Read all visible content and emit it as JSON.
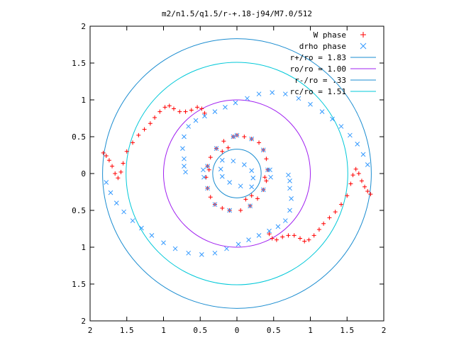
{
  "chart_data": {
    "type": "scatter",
    "title": "m2/n1.5/q1.5/r-+.18-j94/M7.0/512",
    "xlabel": "",
    "ylabel": "",
    "xlim": [
      -2,
      2
    ],
    "ylim": [
      -2,
      2
    ],
    "x_ticks": [
      -2,
      -1.5,
      -1,
      -0.5,
      0,
      0.5,
      1,
      1.5,
      2
    ],
    "y_ticks": [
      -2,
      -1.5,
      -1,
      -0.5,
      0,
      0.5,
      1,
      1.5,
      2
    ],
    "x_tick_labels": [
      "2",
      "1.5",
      "1",
      "0.5",
      "0",
      "0.5",
      "1",
      "1.5",
      "2"
    ],
    "y_tick_labels": [
      "2",
      "1.5",
      "1",
      "0.5",
      "0",
      "0.5",
      "1",
      "1.5",
      "2"
    ],
    "grid": false,
    "legend_position": "top-right",
    "series": [
      {
        "name": "W phase",
        "marker": "plus",
        "color": "#ff0000",
        "points": [
          [
            -1.82,
            0.28
          ],
          [
            -1.78,
            0.24
          ],
          [
            -1.74,
            0.18
          ],
          [
            -1.7,
            0.1
          ],
          [
            -1.66,
            0.0
          ],
          [
            -1.62,
            -0.06
          ],
          [
            -1.58,
            0.02
          ],
          [
            -1.55,
            0.14
          ],
          [
            -1.5,
            0.3
          ],
          [
            -1.42,
            0.42
          ],
          [
            -1.34,
            0.52
          ],
          [
            -1.26,
            0.6
          ],
          [
            -1.18,
            0.68
          ],
          [
            -1.12,
            0.76
          ],
          [
            -1.05,
            0.84
          ],
          [
            -0.98,
            0.9
          ],
          [
            -0.92,
            0.92
          ],
          [
            -0.86,
            0.88
          ],
          [
            -0.78,
            0.84
          ],
          [
            -0.7,
            0.84
          ],
          [
            -0.62,
            0.86
          ],
          [
            -0.54,
            0.9
          ],
          [
            -0.48,
            0.88
          ],
          [
            -0.44,
            0.82
          ],
          [
            1.82,
            -0.28
          ],
          [
            1.78,
            -0.24
          ],
          [
            1.74,
            -0.18
          ],
          [
            1.7,
            -0.1
          ],
          [
            1.66,
            0.0
          ],
          [
            1.62,
            0.06
          ],
          [
            1.58,
            -0.02
          ],
          [
            1.55,
            -0.14
          ],
          [
            1.5,
            -0.3
          ],
          [
            1.42,
            -0.42
          ],
          [
            1.34,
            -0.52
          ],
          [
            1.26,
            -0.6
          ],
          [
            1.18,
            -0.68
          ],
          [
            1.12,
            -0.76
          ],
          [
            1.05,
            -0.84
          ],
          [
            0.98,
            -0.9
          ],
          [
            0.92,
            -0.92
          ],
          [
            0.86,
            -0.88
          ],
          [
            0.78,
            -0.84
          ],
          [
            0.7,
            -0.84
          ],
          [
            0.62,
            -0.86
          ],
          [
            0.54,
            -0.9
          ],
          [
            0.48,
            -0.88
          ],
          [
            0.44,
            -0.82
          ],
          [
            0.0,
            0.52
          ],
          [
            0.1,
            0.5
          ],
          [
            0.2,
            0.47
          ],
          [
            0.3,
            0.42
          ],
          [
            0.36,
            0.32
          ],
          [
            0.4,
            0.2
          ],
          [
            0.42,
            0.05
          ],
          [
            0.4,
            -0.1
          ],
          [
            0.36,
            -0.22
          ],
          [
            0.28,
            -0.34
          ],
          [
            0.18,
            -0.44
          ],
          [
            0.05,
            -0.5
          ],
          [
            -0.1,
            -0.5
          ],
          [
            -0.2,
            -0.47
          ],
          [
            -0.3,
            -0.42
          ],
          [
            -0.36,
            -0.32
          ],
          [
            -0.4,
            -0.2
          ],
          [
            -0.42,
            -0.05
          ],
          [
            -0.4,
            0.1
          ],
          [
            -0.36,
            0.22
          ],
          [
            -0.28,
            0.34
          ],
          [
            -0.18,
            0.44
          ],
          [
            -0.05,
            0.5
          ],
          [
            -0.12,
            0.35
          ],
          [
            -0.2,
            0.3
          ],
          [
            0.12,
            -0.35
          ],
          [
            0.2,
            -0.3
          ],
          [
            0.38,
            -0.05
          ],
          [
            -0.38,
            0.05
          ]
        ]
      },
      {
        "name": "drho phase",
        "marker": "cross",
        "color": "#3399ff",
        "points": [
          [
            -1.78,
            -0.12
          ],
          [
            -1.72,
            -0.26
          ],
          [
            -1.64,
            -0.4
          ],
          [
            -1.54,
            -0.52
          ],
          [
            -1.42,
            -0.64
          ],
          [
            -1.3,
            -0.74
          ],
          [
            -1.16,
            -0.84
          ],
          [
            -1.0,
            -0.94
          ],
          [
            -0.84,
            -1.02
          ],
          [
            -0.66,
            -1.08
          ],
          [
            -0.48,
            -1.1
          ],
          [
            -0.3,
            -1.08
          ],
          [
            -0.14,
            -1.02
          ],
          [
            0.02,
            -0.96
          ],
          [
            0.16,
            -0.9
          ],
          [
            0.3,
            -0.84
          ],
          [
            0.44,
            -0.78
          ],
          [
            0.56,
            -0.72
          ],
          [
            0.66,
            -0.64
          ],
          [
            0.72,
            -0.5
          ],
          [
            0.74,
            -0.34
          ],
          [
            0.72,
            -0.2
          ],
          [
            1.78,
            0.12
          ],
          [
            1.72,
            0.26
          ],
          [
            1.64,
            0.4
          ],
          [
            1.54,
            0.52
          ],
          [
            1.42,
            0.64
          ],
          [
            1.3,
            0.74
          ],
          [
            1.16,
            0.84
          ],
          [
            1.0,
            0.94
          ],
          [
            0.84,
            1.02
          ],
          [
            0.66,
            1.08
          ],
          [
            0.48,
            1.1
          ],
          [
            0.3,
            1.08
          ],
          [
            0.14,
            1.02
          ],
          [
            -0.02,
            0.96
          ],
          [
            -0.16,
            0.9
          ],
          [
            -0.3,
            0.84
          ],
          [
            -0.44,
            0.78
          ],
          [
            -0.56,
            0.72
          ],
          [
            -0.66,
            0.64
          ],
          [
            -0.72,
            0.5
          ],
          [
            -0.74,
            0.34
          ],
          [
            -0.72,
            0.2
          ],
          [
            -0.7,
            0.02
          ],
          [
            -0.72,
            0.1
          ],
          [
            0.7,
            -0.02
          ],
          [
            0.72,
            -0.1
          ],
          [
            -0.2,
            0.18
          ],
          [
            -0.05,
            0.17
          ],
          [
            0.1,
            0.12
          ],
          [
            0.2,
            0.04
          ],
          [
            0.22,
            -0.06
          ],
          [
            0.2,
            -0.18
          ],
          [
            0.05,
            -0.17
          ],
          [
            -0.1,
            -0.12
          ],
          [
            -0.2,
            -0.04
          ],
          [
            -0.22,
            0.06
          ],
          [
            0.0,
            0.52
          ],
          [
            0.2,
            0.47
          ],
          [
            0.36,
            0.32
          ],
          [
            0.42,
            0.05
          ],
          [
            0.36,
            -0.22
          ],
          [
            0.18,
            -0.44
          ],
          [
            -0.1,
            -0.5
          ],
          [
            -0.3,
            -0.42
          ],
          [
            -0.4,
            -0.2
          ],
          [
            -0.4,
            0.1
          ],
          [
            -0.28,
            0.34
          ],
          [
            -0.05,
            0.5
          ],
          [
            0.45,
            0.05
          ],
          [
            0.46,
            -0.05
          ],
          [
            -0.45,
            -0.05
          ],
          [
            -0.46,
            0.05
          ]
        ]
      }
    ],
    "circles": [
      {
        "name": "r+/ro = 1.83",
        "r": 1.83,
        "color": "#1a8cd0"
      },
      {
        "name": "ro/ro = 1.00",
        "r": 1.0,
        "color": "#a020f0"
      },
      {
        "name": "r-/ro = .33",
        "r": 0.33,
        "color": "#1a8cd0"
      },
      {
        "name": "rc/ro = 1.51",
        "r": 1.51,
        "color": "#00c8d8"
      }
    ]
  }
}
